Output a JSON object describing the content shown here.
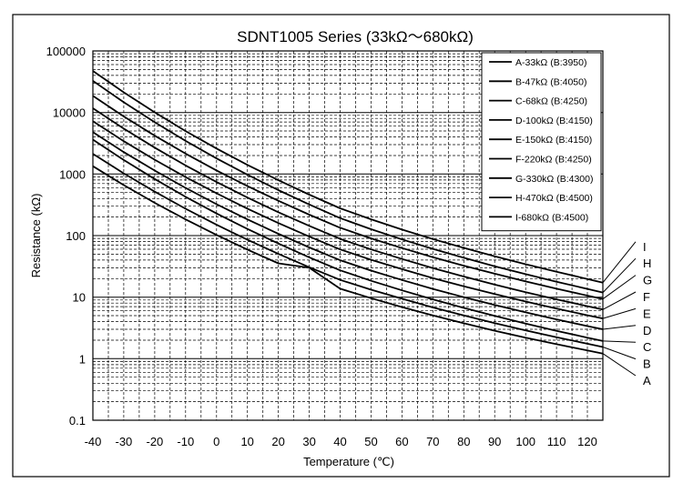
{
  "chart_data": {
    "type": "line",
    "title": "SDNT1005 Series (33kΩ～680kΩ)",
    "xlabel": "Temperature (℃)",
    "ylabel": "Resistance (kΩ)",
    "xlim": [
      -40,
      125
    ],
    "ylim": [
      0.1,
      100000
    ],
    "yscale": "log",
    "grid": true,
    "legend_position": "top-right",
    "x_ticks": [
      "-40",
      "-30",
      "-20",
      "-10",
      "0",
      "10",
      "20",
      "30",
      "40",
      "50",
      "60",
      "70",
      "80",
      "90",
      "100",
      "110",
      "120"
    ],
    "y_ticks": [
      "0.1",
      "1",
      "10",
      "100",
      "1000",
      "10000",
      "100000"
    ],
    "series": [
      {
        "name": "A-33kΩ (B:3950)",
        "end_label": "A",
        "r25": 33,
        "b": 3950,
        "x": [
          -40,
          -30,
          -20,
          -10,
          0,
          10,
          20,
          30,
          40,
          50,
          60,
          70,
          80,
          90,
          100,
          110,
          120,
          125
        ],
        "y": [
          1343.5,
          661.4,
          340.9,
          183.3,
          102.4,
          59.3,
          35.4,
          30.0,
          13.7,
          9.61,
          6.89,
          5.04,
          3.76,
          2.85,
          2.2,
          1.72,
          1.36,
          1.21
        ]
      },
      {
        "name": "B-47kΩ (B:4050)",
        "end_label": "B",
        "r25": 47,
        "b": 4050,
        "x": [
          -40,
          -30,
          -20,
          -10,
          0,
          10,
          20,
          30,
          40,
          50,
          60,
          70,
          80,
          90,
          100,
          110,
          120,
          125
        ],
        "y": [
          2128,
          1024,
          517,
          273,
          150,
          85.6,
          50.4,
          30.6,
          19.1,
          13.2,
          9.43,
          6.8,
          5.04,
          3.78,
          2.88,
          2.23,
          1.75,
          1.55
        ]
      },
      {
        "name": "C-68kΩ (B:4250)",
        "end_label": "C",
        "r25": 68,
        "b": 4250,
        "x": [
          -40,
          -30,
          -20,
          -10,
          0,
          10,
          20,
          30,
          40,
          50,
          60,
          70,
          80,
          90,
          100,
          110,
          120,
          125
        ],
        "y": [
          3629,
          1691,
          829,
          426,
          229,
          128,
          74.3,
          44.4,
          27.3,
          18.4,
          12.9,
          9.19,
          6.69,
          4.95,
          3.72,
          2.84,
          2.2,
          1.94
        ]
      },
      {
        "name": "D-100kΩ (B:4150)",
        "end_label": "D",
        "r25": 100,
        "b": 4150,
        "x": [
          -40,
          -30,
          -20,
          -10,
          0,
          10,
          20,
          30,
          40,
          50,
          60,
          70,
          80,
          90,
          100,
          110,
          120,
          125
        ],
        "y": [
          4798,
          2276,
          1139,
          595,
          324,
          183,
          107,
          64.2,
          39.7,
          27.0,
          19.0,
          13.6,
          10.0,
          7.46,
          5.65,
          4.35,
          3.39,
          3.0
        ]
      },
      {
        "name": "E-150kΩ (B:4150)",
        "end_label": "E",
        "r25": 150,
        "b": 4150,
        "x": [
          -40,
          -30,
          -20,
          -10,
          0,
          10,
          20,
          30,
          40,
          50,
          60,
          70,
          80,
          90,
          100,
          110,
          120,
          125
        ],
        "y": [
          7197,
          3414,
          1708,
          893,
          486,
          274,
          160,
          96.3,
          59.6,
          40.5,
          28.5,
          20.4,
          15.0,
          11.2,
          8.48,
          6.52,
          5.08,
          4.5
        ]
      },
      {
        "name": "F-220kΩ (B:4250)",
        "end_label": "F",
        "r25": 220,
        "b": 4250,
        "x": [
          -40,
          -30,
          -20,
          -10,
          0,
          10,
          20,
          30,
          40,
          50,
          60,
          70,
          80,
          90,
          100,
          110,
          120,
          125
        ],
        "y": [
          11740,
          5470,
          2682,
          1380,
          741,
          415,
          240,
          144,
          88.4,
          59.6,
          41.7,
          29.7,
          21.6,
          16.0,
          12.0,
          9.19,
          7.12,
          6.28
        ]
      },
      {
        "name": "G-330kΩ (B:4300)",
        "end_label": "G",
        "r25": 330,
        "b": 4300,
        "x": [
          -40,
          -30,
          -20,
          -10,
          0,
          10,
          20,
          30,
          40,
          50,
          60,
          70,
          80,
          90,
          100,
          110,
          120,
          125
        ],
        "y": [
          18620,
          8622,
          4196,
          2145,
          1145,
          637,
          368,
          219,
          134,
          90.1,
          62.8,
          44.6,
          32.4,
          24.0,
          18.0,
          13.7,
          10.6,
          9.34
        ]
      },
      {
        "name": "H-470kΩ (B:4500)",
        "end_label": "H",
        "r25": 470,
        "b": 4500,
        "x": [
          -40,
          -30,
          -20,
          -10,
          0,
          10,
          20,
          30,
          40,
          50,
          60,
          70,
          80,
          90,
          100,
          110,
          120,
          125
        ],
        "y": [
          32660,
          14680,
          6946,
          3451,
          1794,
          973,
          548,
          320,
          192,
          127,
          86.7,
          60.8,
          43.6,
          31.8,
          23.6,
          17.8,
          13.6,
          11.9
        ]
      },
      {
        "name": "I-680kΩ (B:4500)",
        "end_label": "I",
        "r25": 680,
        "b": 4500,
        "x": [
          -40,
          -30,
          -20,
          -10,
          0,
          10,
          20,
          30,
          40,
          50,
          60,
          70,
          80,
          90,
          100,
          110,
          120,
          125
        ],
        "y": [
          47250,
          21240,
          10050,
          4992,
          2596,
          1407,
          793,
          463,
          278,
          184,
          125,
          87.9,
          63.1,
          46.1,
          34.2,
          25.8,
          19.7,
          17.2
        ]
      }
    ]
  }
}
